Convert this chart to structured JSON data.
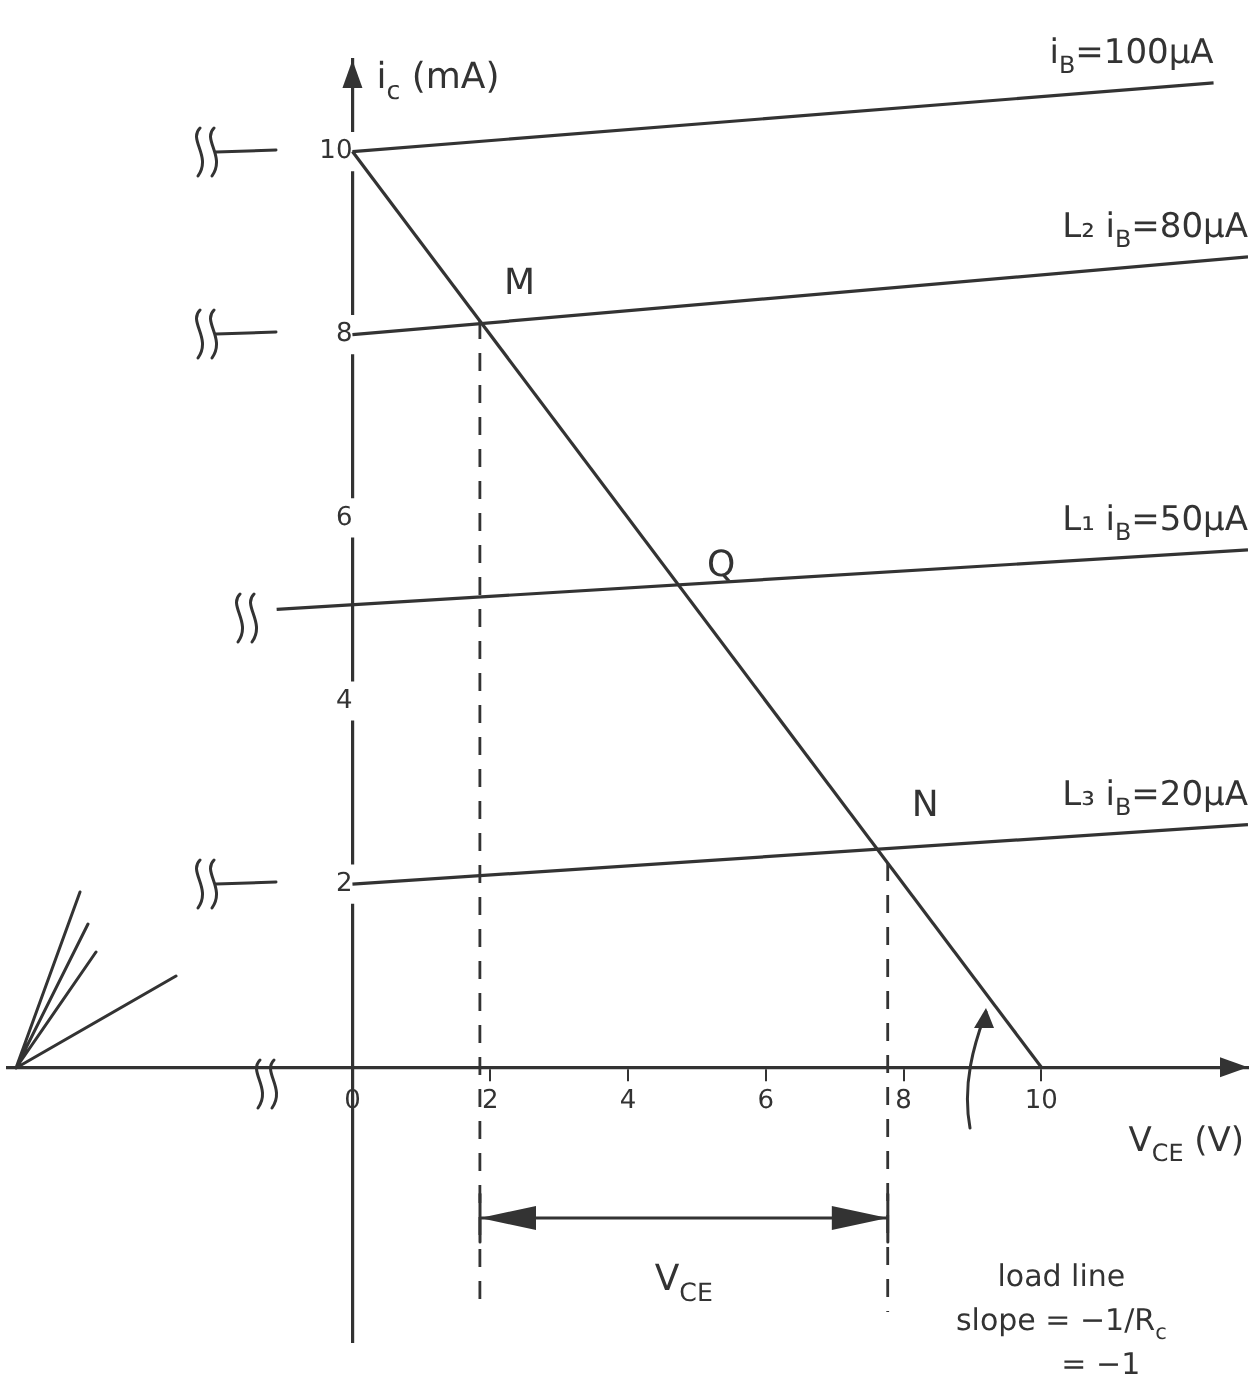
{
  "chart_data": {
    "type": "line",
    "xlabel": "V$_{CE}$ (V)",
    "ylabel": "i$_{c}$ (mA)",
    "xlim": [
      -5,
      13
    ],
    "ylim": [
      -3,
      11
    ],
    "xticks": [
      0,
      2,
      4,
      6,
      8,
      10
    ],
    "yticks": [
      2,
      4,
      6,
      8,
      10
    ],
    "grid": false,
    "legend": false,
    "marker": "none",
    "line_style": "solid",
    "series": [
      {
        "name": "i$_{B}$=100µA",
        "color": "#333333",
        "x": [
          0,
          12.5
        ],
        "values": [
          10,
          10.75
        ]
      },
      {
        "name": "L₂ i$_{B}$=80µA",
        "color": "#333333",
        "x": [
          0,
          13
        ],
        "values": [
          8,
          8.85
        ]
      },
      {
        "name": "L₁ i$_{B}$=50µA",
        "color": "#333333",
        "x": [
          -1.1,
          13
        ],
        "values": [
          5,
          5.65
        ]
      },
      {
        "name": "L₃ i$_{B}$=20µA",
        "color": "#333333",
        "x": [
          0,
          13
        ],
        "values": [
          2,
          2.65
        ]
      },
      {
        "color": "#333333",
        "x": [
          0,
          10
        ],
        "values": [
          10,
          0
        ]
      }
    ],
    "ref_lines": [
      {
        "axis": "x",
        "value": 1.85,
        "color": "#333333",
        "line_style": "dashed"
      },
      {
        "axis": "x",
        "value": 7.77,
        "color": "#333333",
        "line_style": "dashed"
      }
    ],
    "annotations": [
      {
        "text": "M",
        "x": 1.85,
        "y": 8.14
      },
      {
        "text": "Q",
        "x": 4.8,
        "y": 5.06
      },
      {
        "text": "N",
        "x": 7.77,
        "y": 2.44
      },
      "V$_{CE}$",
      "load line",
      "slope = −1/R$_{c}$",
      "= −1"
    ]
  }
}
